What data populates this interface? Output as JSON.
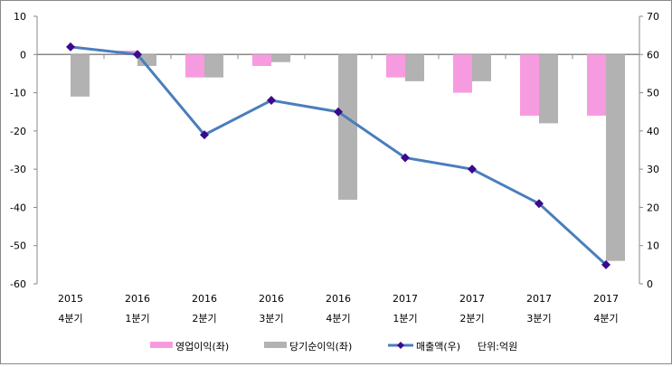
{
  "chart_data": {
    "type": "bar",
    "categories": [
      [
        "2015",
        "4분기"
      ],
      [
        "2016",
        "1분기"
      ],
      [
        "2016",
        "2분기"
      ],
      [
        "2016",
        "3분기"
      ],
      [
        "2016",
        "4분기"
      ],
      [
        "2017",
        "1분기"
      ],
      [
        "2017",
        "2분기"
      ],
      [
        "2017",
        "3분기"
      ],
      [
        "2017",
        "4분기"
      ]
    ],
    "series": [
      {
        "name": "영업이익(좌)",
        "type": "bar",
        "axis": "left",
        "color": "#f79be0",
        "values": [
          0,
          1,
          -6,
          -3,
          0,
          -6,
          -10,
          -16,
          -16
        ]
      },
      {
        "name": "당기순이익(좌)",
        "type": "bar",
        "axis": "left",
        "color": "#b2b2b2",
        "values": [
          -11,
          -3,
          -6,
          -2,
          -38,
          -7,
          -7,
          -18,
          -54
        ]
      },
      {
        "name": "매출액(우)",
        "type": "line",
        "axis": "right",
        "color": "#4a7ebb",
        "marker_color": "#3a0a8c",
        "values": [
          62,
          60,
          39,
          48,
          45,
          33,
          30,
          21,
          5
        ]
      }
    ],
    "ylim_left": [
      -60,
      10
    ],
    "yticks_left": [
      10,
      0,
      -10,
      -20,
      -30,
      -40,
      -50,
      -60
    ],
    "ylim_right": [
      0,
      70
    ],
    "yticks_right": [
      70,
      60,
      50,
      40,
      30,
      20,
      10,
      0
    ],
    "unit_note": "단위:억원",
    "legend": "bottom"
  }
}
